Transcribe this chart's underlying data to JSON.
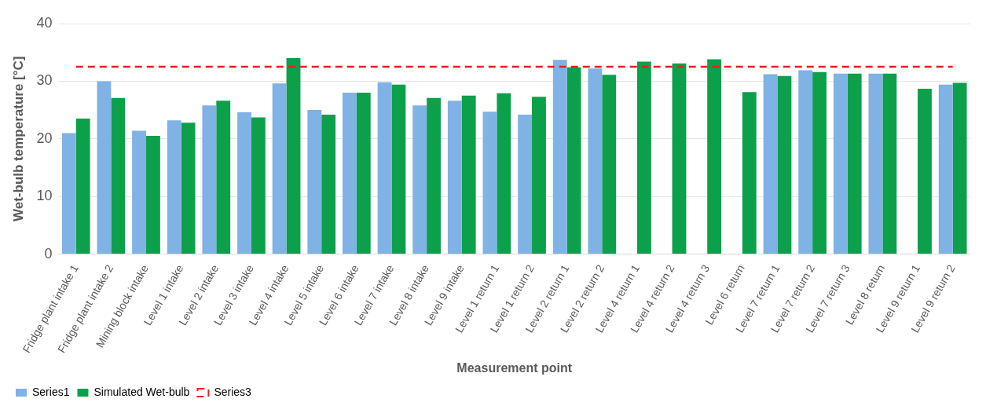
{
  "chart_data": {
    "type": "bar",
    "ylabel": "Wet-bulb temperature [°C]",
    "xlabel": "Measurement point",
    "categories": [
      "Fridge plant intake 1",
      "Fridge plant intake 2",
      "Mining block intake",
      "Level 1 intake",
      "Level 2 intake",
      "Level 3 intake",
      "Level 4 intake",
      "Level 5 intake",
      "Level 6 intake",
      "Level 7 intake",
      "Level 8 intake",
      "Level 9 intake",
      "Level 1 return 1",
      "Level 1 return 2",
      "Level 2 return 1",
      "Level 2 return 2",
      "Level 4 return 1",
      "Level 4 return 2",
      "Level 4 return 3",
      "Level 6 return",
      "Level 7 return 1",
      "Level 7 return 2",
      "Level 7 return 3",
      "Level 8 return",
      "Level 9 return 1",
      "Level 9 return 2"
    ],
    "series": [
      {
        "name": "Series1",
        "color": "#7fb2e5",
        "values": [
          21.0,
          30.0,
          21.4,
          23.2,
          25.8,
          24.6,
          29.6,
          25.0,
          28.0,
          29.8,
          25.8,
          26.6,
          24.7,
          24.2,
          33.7,
          32.2,
          null,
          null,
          null,
          null,
          31.2,
          31.9,
          31.3,
          31.3,
          null,
          29.4
        ]
      },
      {
        "name": "Simulated Wet-bulb",
        "color": "#0ca04a",
        "values": [
          23.5,
          27.1,
          20.5,
          22.8,
          26.6,
          23.7,
          34.0,
          24.2,
          28.0,
          29.4,
          27.1,
          27.5,
          27.9,
          27.3,
          32.4,
          31.1,
          33.4,
          33.1,
          33.8,
          28.1,
          30.9,
          31.6,
          31.3,
          31.3,
          28.7,
          29.7
        ]
      },
      {
        "name": "Series3",
        "type": "line",
        "line_style": "dashed",
        "color": "#ee1c1c",
        "values": [
          32.5,
          32.5,
          32.5,
          32.5,
          32.5,
          32.5,
          32.5,
          32.5,
          32.5,
          32.5,
          32.5,
          32.5,
          32.5,
          32.5,
          32.5,
          32.5,
          32.5,
          32.5,
          32.5,
          32.5,
          32.5,
          32.5,
          32.5,
          32.5,
          32.5,
          32.5
        ]
      }
    ],
    "ylim": [
      0,
      40
    ],
    "yticks": [
      0,
      10,
      20,
      30,
      40
    ],
    "grid": "y",
    "legend": "bottom",
    "marker": "none"
  }
}
